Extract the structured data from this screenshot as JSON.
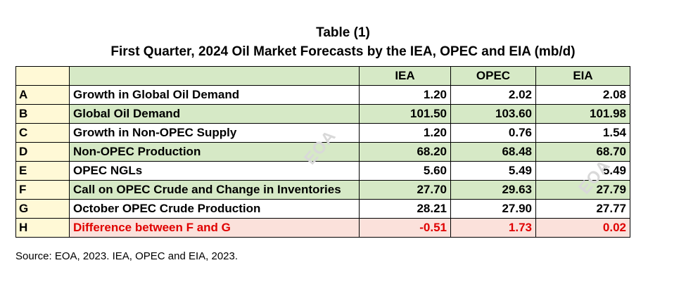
{
  "chart_data": {
    "type": "table",
    "title": "Table (1)",
    "subtitle": "First Quarter, 2024 Oil Market Forecasts by the IEA, OPEC and EIA  (mb/d)",
    "columns": [
      "IEA",
      "OPEC",
      "EIA"
    ],
    "rows": [
      {
        "letter": "A",
        "label": "Growth in Global Oil Demand",
        "values": [
          "1.20",
          "2.02",
          "2.08"
        ]
      },
      {
        "letter": "B",
        "label": "Global Oil Demand",
        "values": [
          "101.50",
          "103.60",
          "101.98"
        ]
      },
      {
        "letter": "C",
        "label": "Growth in Non-OPEC Supply",
        "values": [
          "1.20",
          "0.76",
          "1.54"
        ]
      },
      {
        "letter": "D",
        "label": "Non-OPEC Production",
        "values": [
          "68.20",
          "68.48",
          "68.70"
        ]
      },
      {
        "letter": "E",
        "label": "OPEC NGLs",
        "values": [
          "5.60",
          "5.49",
          "5.49"
        ]
      },
      {
        "letter": "F",
        "label": "Call on OPEC Crude and Change in Inventories",
        "values": [
          "27.70",
          "29.63",
          "27.79"
        ]
      },
      {
        "letter": "G",
        "label": "October OPEC Crude Production",
        "values": [
          "28.21",
          "27.90",
          "27.77"
        ]
      },
      {
        "letter": "H",
        "label": "Difference between F and G",
        "values": [
          "-0.51",
          "1.73",
          "0.02"
        ]
      }
    ],
    "source": "Source: EOA, 2023. IEA, OPEC and EIA, 2023.",
    "watermark": "EOA"
  },
  "colors": {
    "green_fill": "#d6e9c6",
    "yellow_fill": "#fff9d6",
    "red_fill": "#fbe1db",
    "red_text": "#e00000"
  }
}
